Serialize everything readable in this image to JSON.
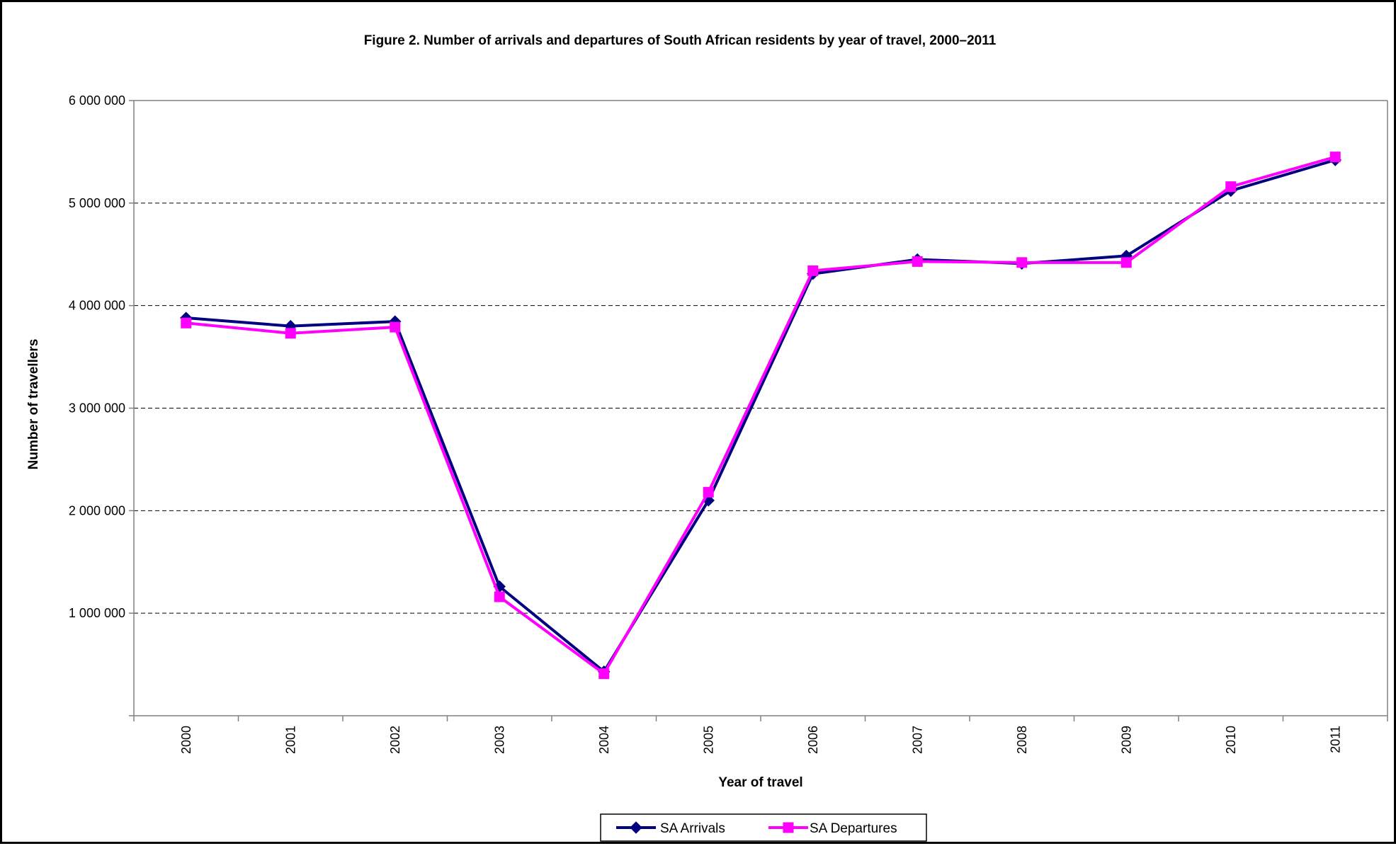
{
  "chart_data": {
    "type": "line",
    "title": "Figure 2. Number of arrivals and departures of South African residents by year of travel, 2000–2011",
    "xlabel": "Year of travel",
    "ylabel": "Number of travellers",
    "categories": [
      "2000",
      "2001",
      "2002",
      "2003",
      "2004",
      "2005",
      "2006",
      "2007",
      "2008",
      "2009",
      "2010",
      "2011"
    ],
    "ylim": [
      0,
      6000000
    ],
    "y_ticks": [
      {
        "value": 1000000,
        "label": "1 000 000"
      },
      {
        "value": 2000000,
        "label": "2 000 000"
      },
      {
        "value": 3000000,
        "label": "3 000 000"
      },
      {
        "value": 4000000,
        "label": "4 000 000"
      },
      {
        "value": 5000000,
        "label": "5 000 000"
      },
      {
        "value": 6000000,
        "label": "6 000 000"
      }
    ],
    "grid": "horizontal dashed",
    "legend_position": "bottom",
    "series": [
      {
        "name": "SA Arrivals",
        "color": "#000080",
        "marker": "diamond",
        "values": [
          3880000,
          3800000,
          3845000,
          1260000,
          430000,
          2100000,
          4310000,
          4450000,
          4410000,
          4485000,
          5120000,
          5420000
        ]
      },
      {
        "name": "SA Departures",
        "color": "#FF00FF",
        "marker": "square",
        "values": [
          3830000,
          3730000,
          3790000,
          1160000,
          410000,
          2180000,
          4340000,
          4430000,
          4420000,
          4420000,
          5160000,
          5450000
        ]
      }
    ]
  }
}
